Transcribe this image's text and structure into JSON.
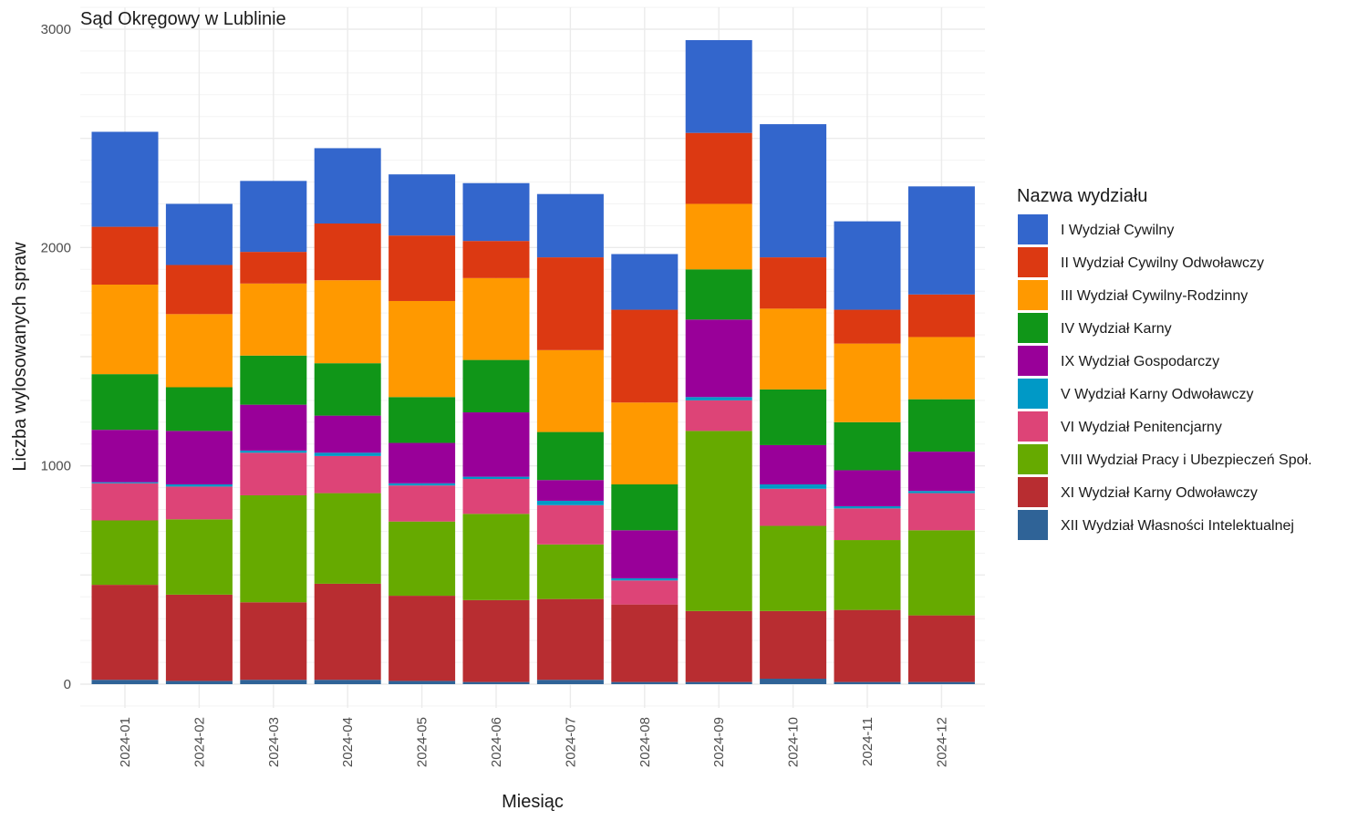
{
  "chart_data": {
    "type": "bar",
    "stacked": true,
    "title": "Sąd Okręgowy w Lublinie",
    "xlabel": "Miesiąc",
    "ylabel": "Liczba wylosowanych spraw",
    "ylim": [
      0,
      3000
    ],
    "y_ticks": [
      0,
      1000,
      2000,
      3000
    ],
    "y_tick_labels": [
      "0",
      "1000",
      "2000",
      "3000"
    ],
    "grid": true,
    "legend_title": "Nazwa wydziału",
    "legend_position": "right",
    "categories": [
      "2024-01",
      "2024-02",
      "2024-03",
      "2024-04",
      "2024-05",
      "2024-06",
      "2024-07",
      "2024-08",
      "2024-09",
      "2024-10",
      "2024-11",
      "2024-12"
    ],
    "series": [
      {
        "name": "XII Wydział Własności Intelektualnej",
        "color": "#2f6397",
        "values": [
          20,
          15,
          20,
          20,
          15,
          10,
          20,
          10,
          10,
          25,
          10,
          10
        ]
      },
      {
        "name": "XI Wydział Karny Odwoławczy",
        "color": "#b82d31",
        "values": [
          435,
          395,
          355,
          440,
          390,
          375,
          370,
          355,
          325,
          310,
          330,
          305
        ]
      },
      {
        "name": "VIII Wydział Pracy i Ubezpieczeń Społ.",
        "color": "#66aa00",
        "values": [
          295,
          345,
          490,
          415,
          340,
          395,
          250,
          0,
          825,
          390,
          320,
          390
        ]
      },
      {
        "name": "VI Wydział Penitencjarny",
        "color": "#dd4477",
        "values": [
          170,
          150,
          195,
          170,
          165,
          160,
          180,
          110,
          140,
          170,
          145,
          170
        ]
      },
      {
        "name": "V Wydział Karny Odwoławczy",
        "color": "#0099c6",
        "values": [
          5,
          10,
          10,
          15,
          10,
          10,
          20,
          10,
          15,
          20,
          10,
          10
        ]
      },
      {
        "name": "IX Wydział Gospodarczy",
        "color": "#990099",
        "values": [
          240,
          245,
          210,
          170,
          185,
          295,
          95,
          220,
          355,
          180,
          165,
          180
        ]
      },
      {
        "name": "IV Wydział Karny",
        "color": "#109618",
        "values": [
          255,
          200,
          225,
          240,
          210,
          240,
          220,
          210,
          230,
          255,
          220,
          240
        ]
      },
      {
        "name": "III Wydział Cywilny-Rodzinny",
        "color": "#ff9900",
        "values": [
          410,
          335,
          330,
          380,
          440,
          375,
          375,
          375,
          300,
          370,
          360,
          285
        ]
      },
      {
        "name": "II Wydział Cywilny Odwoławczy",
        "color": "#dc3912",
        "values": [
          265,
          225,
          145,
          260,
          300,
          170,
          425,
          425,
          325,
          235,
          155,
          195
        ]
      },
      {
        "name": "I Wydział Cywilny",
        "color": "#3366cc",
        "values": [
          435,
          280,
          325,
          345,
          280,
          265,
          290,
          255,
          425,
          610,
          405,
          495
        ]
      }
    ],
    "legend_order": [
      "I Wydział Cywilny",
      "II Wydział Cywilny Odwoławczy",
      "III Wydział Cywilny-Rodzinny",
      "IV Wydział Karny",
      "IX Wydział Gospodarczy",
      "V Wydział Karny Odwoławczy",
      "VI Wydział Penitencjarny",
      "VIII Wydział Pracy i Ubezpieczeń Społ.",
      "XI Wydział Karny Odwoławczy",
      "XII Wydział Własności Intelektualnej"
    ]
  }
}
